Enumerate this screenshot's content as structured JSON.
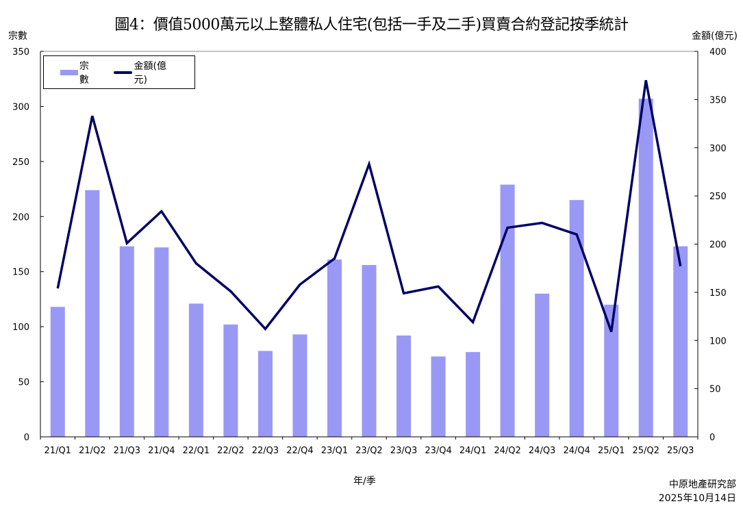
{
  "title": "圖4：價值5000萬元以上整體私人住宅(包括一手及二手)買賣合約登記按季統計",
  "left_axis_unit": "宗數",
  "right_axis_unit": "金額(億元)",
  "xlabel": "年/季",
  "source": {
    "org": "中原地產研究部",
    "date": "2025年10月14日"
  },
  "legend": {
    "bar_label": "宗數",
    "line_label": "金額(億元)"
  },
  "colors": {
    "bar": "#9999f5",
    "line": "#000066",
    "axis": "#000000"
  },
  "chart_data": {
    "type": "bar+line",
    "title": "圖4：價值5000萬元以上整體私人住宅(包括一手及二手)買賣合約登記按季統計",
    "xlabel": "年/季",
    "ylabel": "宗數",
    "y2label": "金額(億元)",
    "ylim": [
      0,
      350
    ],
    "y2lim": [
      0,
      400
    ],
    "yticks": [
      0,
      50,
      100,
      150,
      200,
      250,
      300,
      350
    ],
    "y2ticks": [
      0,
      50,
      100,
      150,
      200,
      250,
      300,
      350,
      400
    ],
    "grid": false,
    "legend_position": "top-left",
    "categories": [
      "21/Q1",
      "21/Q2",
      "21/Q3",
      "21/Q4",
      "22/Q1",
      "22/Q2",
      "22/Q3",
      "22/Q4",
      "23/Q1",
      "23/Q2",
      "23/Q3",
      "23/Q4",
      "24/Q1",
      "24/Q2",
      "24/Q3",
      "24/Q4",
      "25/Q1",
      "25/Q2",
      "25/Q3"
    ],
    "series": [
      {
        "name": "宗數",
        "type": "bar",
        "axis": "left",
        "values": [
          118,
          224,
          173,
          172,
          121,
          102,
          78,
          93,
          161,
          156,
          92,
          73,
          77,
          229,
          130,
          215,
          120,
          307,
          173
        ]
      },
      {
        "name": "金額(億元)",
        "type": "line",
        "axis": "right",
        "values": [
          154,
          333,
          201,
          234,
          180,
          151,
          112,
          158,
          185,
          283,
          149,
          156,
          119,
          217,
          222,
          210,
          109,
          370,
          177
        ]
      }
    ]
  }
}
